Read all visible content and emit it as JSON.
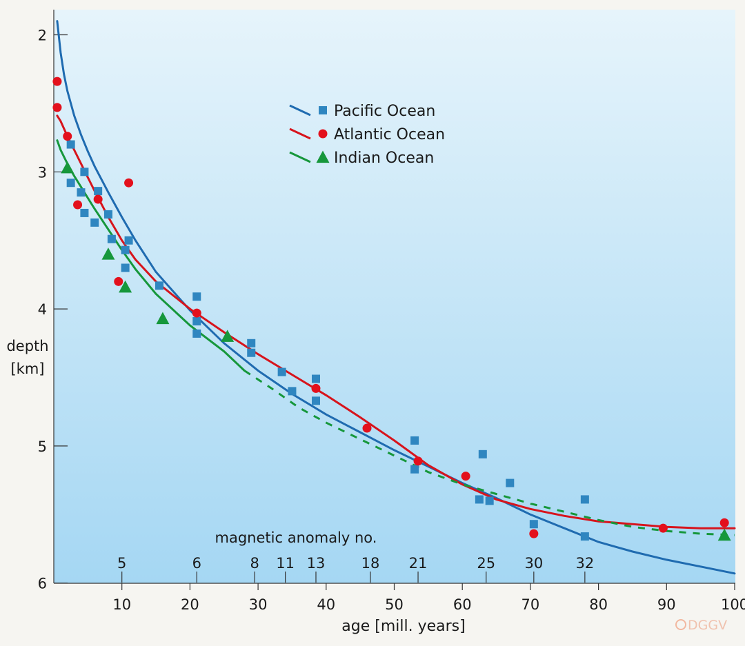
{
  "chart_data": {
    "type": "scatter",
    "title": "",
    "xlabel": "age [mill. years]",
    "ylabel_line1": "depth",
    "ylabel_line2": "[km]",
    "xlim": [
      0,
      100
    ],
    "ylim": [
      1.8,
      6.0
    ],
    "y_inverted": true,
    "x_ticks": [
      10,
      20,
      30,
      40,
      50,
      60,
      70,
      80,
      90,
      100
    ],
    "y_ticks": [
      2,
      3,
      4,
      5,
      6
    ],
    "grid": false,
    "legend_position": "top-center",
    "anomaly_axis_label": "magnetic anomaly no.",
    "anomalies": [
      {
        "label": "5",
        "age": 10.0
      },
      {
        "label": "6",
        "age": 21.0
      },
      {
        "label": "8",
        "age": 29.5
      },
      {
        "label": "11",
        "age": 34.0
      },
      {
        "label": "13",
        "age": 38.5
      },
      {
        "label": "18",
        "age": 46.5
      },
      {
        "label": "21",
        "age": 53.5
      },
      {
        "label": "25",
        "age": 63.5
      },
      {
        "label": "30",
        "age": 70.5
      },
      {
        "label": "32",
        "age": 78.0
      }
    ],
    "watermark": "DGGV",
    "series": [
      {
        "name": "Pacific Ocean",
        "marker": "square",
        "color": "#2f86c0",
        "line_color": "#1f6bb0",
        "points": [
          [
            2.5,
            2.8
          ],
          [
            2.5,
            3.08
          ],
          [
            4,
            3.15
          ],
          [
            4.5,
            3.0
          ],
          [
            4.5,
            3.3
          ],
          [
            6,
            3.37
          ],
          [
            6.5,
            3.14
          ],
          [
            8,
            3.31
          ],
          [
            8.5,
            3.49
          ],
          [
            10.5,
            3.57
          ],
          [
            10.5,
            3.7
          ],
          [
            11,
            3.5
          ],
          [
            15.5,
            3.83
          ],
          [
            21,
            3.91
          ],
          [
            21,
            4.09
          ],
          [
            21,
            4.18
          ],
          [
            29,
            4.25
          ],
          [
            29,
            4.32
          ],
          [
            33.5,
            4.46
          ],
          [
            35,
            4.6
          ],
          [
            38.5,
            4.67
          ],
          [
            38.5,
            4.51
          ],
          [
            53,
            4.96
          ],
          [
            53,
            5.17
          ],
          [
            63,
            5.06
          ],
          [
            62.5,
            5.39
          ],
          [
            64,
            5.4
          ],
          [
            67,
            5.27
          ],
          [
            70.5,
            5.57
          ],
          [
            78,
            5.39
          ],
          [
            78,
            5.66
          ]
        ],
        "fit": [
          [
            0.5,
            1.9
          ],
          [
            1,
            2.13
          ],
          [
            1.5,
            2.29
          ],
          [
            2,
            2.41
          ],
          [
            3,
            2.59
          ],
          [
            4,
            2.73
          ],
          [
            5,
            2.85
          ],
          [
            6,
            2.96
          ],
          [
            8,
            3.15
          ],
          [
            10,
            3.33
          ],
          [
            12,
            3.5
          ],
          [
            15,
            3.73
          ],
          [
            20,
            4.01
          ],
          [
            25,
            4.25
          ],
          [
            30,
            4.45
          ],
          [
            35,
            4.62
          ],
          [
            40,
            4.77
          ],
          [
            45,
            4.9
          ],
          [
            50,
            5.03
          ],
          [
            55,
            5.15
          ],
          [
            60,
            5.27
          ],
          [
            65,
            5.38
          ],
          [
            70,
            5.5
          ],
          [
            75,
            5.6
          ],
          [
            80,
            5.7
          ],
          [
            85,
            5.77
          ],
          [
            90,
            5.83
          ],
          [
            95,
            5.88
          ],
          [
            100,
            5.93
          ]
        ]
      },
      {
        "name": "Atlantic Ocean",
        "marker": "circle",
        "color": "#e3101c",
        "line_color": "#d7141c",
        "points": [
          [
            0.5,
            2.34
          ],
          [
            0.5,
            2.53
          ],
          [
            2,
            2.74
          ],
          [
            3.5,
            3.24
          ],
          [
            6.5,
            3.2
          ],
          [
            9.5,
            3.8
          ],
          [
            11,
            3.08
          ],
          [
            21,
            4.03
          ],
          [
            38.5,
            4.58
          ],
          [
            46,
            4.87
          ],
          [
            53.5,
            5.11
          ],
          [
            60.5,
            5.22
          ],
          [
            70.5,
            5.64
          ],
          [
            89.5,
            5.6
          ],
          [
            98.5,
            5.56
          ]
        ],
        "fit": [
          [
            0.5,
            2.59
          ],
          [
            1,
            2.63
          ],
          [
            2,
            2.74
          ],
          [
            3,
            2.84
          ],
          [
            4,
            2.94
          ],
          [
            5,
            3.04
          ],
          [
            6,
            3.14
          ],
          [
            8,
            3.33
          ],
          [
            10,
            3.5
          ],
          [
            12,
            3.64
          ],
          [
            15,
            3.8
          ],
          [
            20,
            4.0
          ],
          [
            25,
            4.17
          ],
          [
            30,
            4.33
          ],
          [
            35,
            4.48
          ],
          [
            40,
            4.63
          ],
          [
            45,
            4.79
          ],
          [
            50,
            4.96
          ],
          [
            55,
            5.14
          ],
          [
            60,
            5.28
          ],
          [
            65,
            5.39
          ],
          [
            70,
            5.46
          ],
          [
            75,
            5.51
          ],
          [
            80,
            5.55
          ],
          [
            85,
            5.57
          ],
          [
            90,
            5.59
          ],
          [
            95,
            5.6
          ],
          [
            100,
            5.6
          ]
        ]
      },
      {
        "name": "Indian Ocean",
        "marker": "triangle",
        "color": "#16973b",
        "line_color": "#16973b",
        "points": [
          [
            2,
            2.97
          ],
          [
            8,
            3.6
          ],
          [
            10.5,
            3.84
          ],
          [
            16,
            4.07
          ],
          [
            25.5,
            4.2
          ],
          [
            98.5,
            5.65
          ]
        ],
        "fit": [
          [
            0.5,
            2.77
          ],
          [
            1,
            2.84
          ],
          [
            2,
            2.94
          ],
          [
            3,
            3.03
          ],
          [
            4,
            3.11
          ],
          [
            5,
            3.19
          ],
          [
            6,
            3.27
          ],
          [
            8,
            3.42
          ],
          [
            10,
            3.57
          ],
          [
            12,
            3.71
          ],
          [
            15,
            3.89
          ],
          [
            20,
            4.12
          ],
          [
            25,
            4.31
          ],
          [
            28,
            4.45
          ]
        ],
        "fit_dashed": [
          [
            28,
            4.45
          ],
          [
            32,
            4.58
          ],
          [
            36,
            4.72
          ],
          [
            40,
            4.83
          ],
          [
            45,
            4.95
          ],
          [
            50,
            5.07
          ],
          [
            55,
            5.19
          ],
          [
            60,
            5.28
          ],
          [
            65,
            5.35
          ],
          [
            70,
            5.42
          ],
          [
            75,
            5.48
          ],
          [
            80,
            5.54
          ],
          [
            85,
            5.59
          ],
          [
            90,
            5.62
          ],
          [
            95,
            5.64
          ],
          [
            100,
            5.65
          ]
        ]
      }
    ]
  }
}
